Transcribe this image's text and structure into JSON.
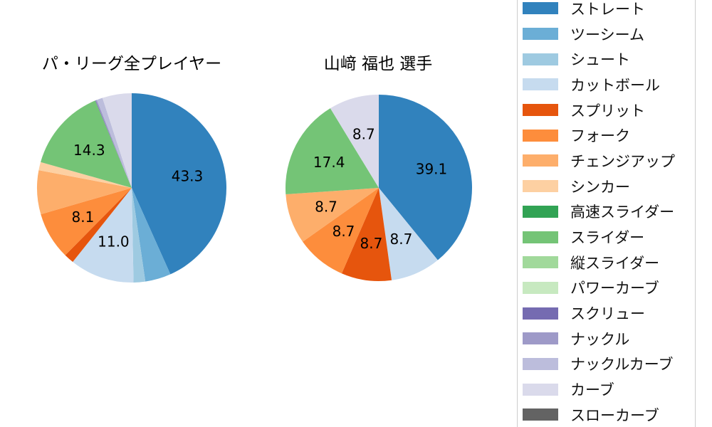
{
  "figure": {
    "background": "#ffffff",
    "text_color": "#000000"
  },
  "legend": {
    "position": "right",
    "border_color": "#cccccc",
    "items": [
      {
        "label": "ストレート",
        "color": "#3182bd"
      },
      {
        "label": "ツーシーム",
        "color": "#6baed6"
      },
      {
        "label": "シュート",
        "color": "#9ecae1"
      },
      {
        "label": "カットボール",
        "color": "#c6dbef"
      },
      {
        "label": "スプリット",
        "color": "#e6550d"
      },
      {
        "label": "フォーク",
        "color": "#fd8d3c"
      },
      {
        "label": "チェンジアップ",
        "color": "#fdae6b"
      },
      {
        "label": "シンカー",
        "color": "#fdd0a2"
      },
      {
        "label": "高速スライダー",
        "color": "#31a354"
      },
      {
        "label": "スライダー",
        "color": "#74c476"
      },
      {
        "label": "縦スライダー",
        "color": "#a1d99b"
      },
      {
        "label": "パワーカーブ",
        "color": "#c7e9c0"
      },
      {
        "label": "スクリュー",
        "color": "#756bb1"
      },
      {
        "label": "ナックル",
        "color": "#9e9ac8"
      },
      {
        "label": "ナックルカーブ",
        "color": "#bcbddc"
      },
      {
        "label": "カーブ",
        "color": "#dadaeb"
      },
      {
        "label": "スローカーブ",
        "color": "#636363"
      }
    ]
  },
  "chart_data": [
    {
      "type": "pie",
      "title": "パ・リーグ全プレイヤー",
      "unit": "percent",
      "start_angle_deg": 90,
      "direction": "clockwise",
      "label_distance_ratio": 0.6,
      "slices": [
        {
          "label": "ストレート",
          "value": 43.3,
          "color": "#3182bd",
          "pct_label": "43.3"
        },
        {
          "label": "ツーシーム",
          "value": 4.4,
          "color": "#6baed6",
          "pct_label": null
        },
        {
          "label": "シュート",
          "value": 2.0,
          "color": "#9ecae1",
          "pct_label": null
        },
        {
          "label": "カットボール",
          "value": 11.0,
          "color": "#c6dbef",
          "pct_label": "11.0"
        },
        {
          "label": "スプリット",
          "value": 1.7,
          "color": "#e6550d",
          "pct_label": null
        },
        {
          "label": "フォーク",
          "value": 8.1,
          "color": "#fd8d3c",
          "pct_label": "8.1"
        },
        {
          "label": "チェンジアップ",
          "value": 7.5,
          "color": "#fdae6b",
          "pct_label": null
        },
        {
          "label": "シンカー",
          "value": 1.4,
          "color": "#fdd0a2",
          "pct_label": null
        },
        {
          "label": "スライダー",
          "value": 14.3,
          "color": "#74c476",
          "pct_label": "14.3"
        },
        {
          "label": "スクリュー",
          "value": 0.1,
          "color": "#756bb1",
          "pct_label": null
        },
        {
          "label": "ナックル",
          "value": 0.2,
          "color": "#9e9ac8",
          "pct_label": null
        },
        {
          "label": "ナックルカーブ",
          "value": 1.0,
          "color": "#bcbddc",
          "pct_label": null
        },
        {
          "label": "カーブ",
          "value": 5.0,
          "color": "#dadaeb",
          "pct_label": null
        }
      ]
    },
    {
      "type": "pie",
      "title": "山﨑 福也  選手",
      "unit": "percent",
      "start_angle_deg": 90,
      "direction": "clockwise",
      "label_distance_ratio": 0.6,
      "slices": [
        {
          "label": "ストレート",
          "value": 39.1,
          "color": "#3182bd",
          "pct_label": "39.1"
        },
        {
          "label": "カットボール",
          "value": 8.7,
          "color": "#c6dbef",
          "pct_label": "8.7"
        },
        {
          "label": "スプリット",
          "value": 8.7,
          "color": "#e6550d",
          "pct_label": "8.7"
        },
        {
          "label": "フォーク",
          "value": 8.7,
          "color": "#fd8d3c",
          "pct_label": "8.7"
        },
        {
          "label": "チェンジアップ",
          "value": 8.7,
          "color": "#fdae6b",
          "pct_label": "8.7"
        },
        {
          "label": "スライダー",
          "value": 17.4,
          "color": "#74c476",
          "pct_label": "17.4"
        },
        {
          "label": "カーブ",
          "value": 8.7,
          "color": "#dadaeb",
          "pct_label": "8.7"
        }
      ]
    }
  ]
}
